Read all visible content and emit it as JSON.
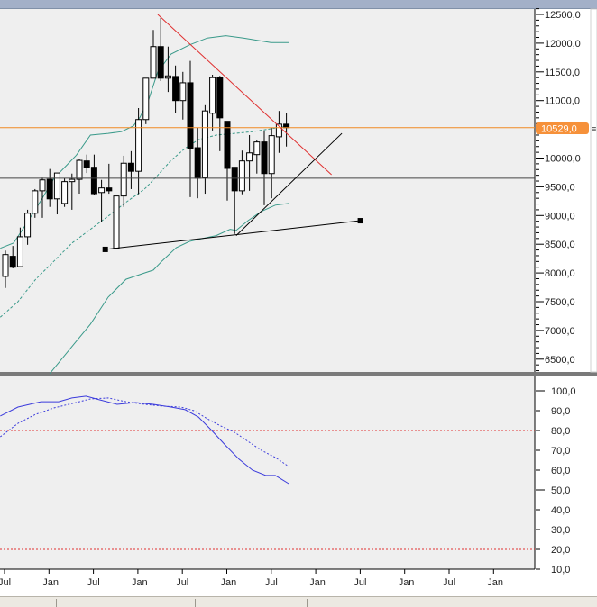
{
  "chart_data": [
    {
      "type": "candlestick",
      "pane": "price",
      "yticks": [
        "12500,0",
        "12000,0",
        "11500,0",
        "11000,0",
        "10000,0",
        "9500,0",
        "9000,0",
        "8500,0",
        "8000,0",
        "7500,0",
        "7000,0",
        "6500,0"
      ],
      "ytick_values": [
        12500,
        12000,
        11500,
        11000,
        10000,
        9500,
        9000,
        8500,
        8000,
        7500,
        7000,
        6500
      ],
      "ylim": [
        6250,
        12650
      ],
      "last_price_label": "10529,0",
      "last_price": 10529,
      "colors": {
        "up": "#ffffff",
        "down": "#000000",
        "bands": "#3a9a8a",
        "last_price_line": "#f08a24",
        "resistance": "#e03030",
        "support": "#000000"
      },
      "candles_ohlc": [
        [
          7940,
          8390,
          7740,
          8320
        ],
        [
          8290,
          8470,
          8080,
          8100
        ],
        [
          8110,
          8790,
          8100,
          8630
        ],
        [
          8630,
          9100,
          8490,
          9040
        ],
        [
          9040,
          9460,
          8960,
          9430
        ],
        [
          9430,
          9660,
          8960,
          9620
        ],
        [
          9630,
          9810,
          9150,
          9290
        ],
        [
          9290,
          9740,
          9020,
          9740
        ],
        [
          9210,
          9650,
          9150,
          9590
        ],
        [
          9590,
          9730,
          9100,
          9630
        ],
        [
          9630,
          9980,
          9380,
          9960
        ],
        [
          9950,
          10060,
          9740,
          9840
        ],
        [
          9840,
          10060,
          9350,
          9380
        ],
        [
          9400,
          9620,
          8880,
          9480
        ],
        [
          9480,
          9900,
          9380,
          9430
        ],
        [
          8430,
          9340,
          8410,
          9340
        ],
        [
          9340,
          10040,
          9150,
          9910
        ],
        [
          9910,
          10120,
          9460,
          9770
        ],
        [
          9770,
          10870,
          9370,
          10670
        ],
        [
          10670,
          11390,
          10590,
          11390
        ],
        [
          11390,
          12230,
          11390,
          11940
        ],
        [
          11940,
          12440,
          11340,
          11390
        ],
        [
          11390,
          11940,
          11150,
          11430
        ],
        [
          11420,
          11610,
          10790,
          11000
        ],
        [
          11000,
          11500,
          10670,
          11310
        ],
        [
          11310,
          11690,
          9320,
          10170
        ],
        [
          10180,
          10530,
          9300,
          9650
        ],
        [
          9660,
          10920,
          9380,
          10820
        ],
        [
          10780,
          11450,
          10480,
          11400
        ],
        [
          11400,
          11430,
          10120,
          10700
        ],
        [
          10640,
          10640,
          9260,
          9820
        ],
        [
          9840,
          9840,
          8680,
          9430
        ],
        [
          9430,
          10130,
          9370,
          9950
        ],
        [
          9950,
          10400,
          9430,
          10090
        ],
        [
          10060,
          10320,
          9730,
          10280
        ],
        [
          10280,
          10480,
          9180,
          9730
        ],
        [
          9730,
          10530,
          9300,
          10390
        ],
        [
          10370,
          10820,
          10090,
          10590
        ],
        [
          10590,
          10790,
          10200,
          10529
        ]
      ],
      "bands": {
        "upper": [
          [
            -0.7,
            8430
          ],
          [
            1.1,
            8520
          ],
          [
            2.9,
            8870
          ],
          [
            4.8,
            9260
          ],
          [
            6.6,
            9650
          ],
          [
            8.4,
            9890
          ],
          [
            9.6,
            10050
          ],
          [
            11.5,
            10400
          ],
          [
            13.9,
            10430
          ],
          [
            15.7,
            10460
          ],
          [
            17.3,
            10560
          ],
          [
            18.2,
            10710
          ],
          [
            19.4,
            11030
          ],
          [
            20.6,
            11500
          ],
          [
            22.4,
            11810
          ],
          [
            24.9,
            11970
          ],
          [
            27.3,
            12090
          ],
          [
            29.8,
            12130
          ],
          [
            32.2,
            12090
          ],
          [
            35.9,
            12010
          ],
          [
            38.3,
            12010
          ]
        ],
        "middle": [
          [
            -0.7,
            7230
          ],
          [
            1.7,
            7500
          ],
          [
            4.1,
            7890
          ],
          [
            6.6,
            8210
          ],
          [
            9.0,
            8520
          ],
          [
            11.5,
            8760
          ],
          [
            13.9,
            8990
          ],
          [
            16.3,
            9230
          ],
          [
            18.8,
            9460
          ],
          [
            20.6,
            9700
          ],
          [
            22.4,
            9960
          ],
          [
            24.3,
            10170
          ],
          [
            26.1,
            10320
          ],
          [
            28.5,
            10400
          ],
          [
            31.0,
            10430
          ],
          [
            33.4,
            10460
          ],
          [
            35.9,
            10510
          ],
          [
            38.3,
            10560
          ]
        ],
        "lower": [
          [
            6.0,
            6250
          ],
          [
            9.0,
            6720
          ],
          [
            11.5,
            7110
          ],
          [
            13.9,
            7580
          ],
          [
            16.3,
            7890
          ],
          [
            18.8,
            8000
          ],
          [
            20.0,
            8050
          ],
          [
            21.2,
            8210
          ],
          [
            23.1,
            8440
          ],
          [
            24.9,
            8550
          ],
          [
            26.7,
            8600
          ],
          [
            28.5,
            8650
          ],
          [
            30.4,
            8760
          ],
          [
            31.2,
            8740
          ],
          [
            32.8,
            8910
          ],
          [
            34.6,
            9070
          ],
          [
            36.5,
            9180
          ],
          [
            38.3,
            9210
          ]
        ]
      },
      "trendlines": [
        {
          "name": "resistance",
          "from": [
            20.6,
            12500
          ],
          "to": [
            44.1,
            9710
          ]
        },
        {
          "name": "support-long",
          "from": [
            13.5,
            8410
          ],
          "to": [
            48.0,
            8910
          ]
        },
        {
          "name": "support-short",
          "from": [
            31.2,
            8650
          ],
          "to": [
            45.5,
            10430
          ]
        }
      ],
      "hlines": [
        9650,
        10529
      ]
    },
    {
      "type": "line",
      "pane": "oscillator",
      "yticks": [
        "100,0",
        "90,0",
        "80,0",
        "70,0",
        "60,0",
        "50,0",
        "40,0",
        "30,0",
        "20,0",
        "10,0"
      ],
      "ytick_values": [
        100,
        90,
        80,
        70,
        60,
        50,
        40,
        30,
        20,
        10
      ],
      "ylim": [
        9,
        100
      ],
      "reference_lines": [
        80,
        20
      ],
      "colors": {
        "series": "#3b3bdc",
        "reference": "#e03030"
      },
      "series": [
        {
          "style": "solid",
          "points": [
            [
              -0.7,
              87.3
            ],
            [
              1.7,
              91.8
            ],
            [
              4.8,
              94.5
            ],
            [
              7.2,
              94.5
            ],
            [
              9.0,
              96.4
            ],
            [
              10.9,
              97.3
            ],
            [
              12.7,
              95.5
            ],
            [
              15.1,
              93.2
            ],
            [
              17.6,
              94.1
            ],
            [
              20.0,
              93.2
            ],
            [
              22.4,
              91.8
            ],
            [
              24.3,
              90.5
            ],
            [
              26.1,
              86.8
            ],
            [
              27.9,
              80.0
            ],
            [
              29.8,
              72.3
            ],
            [
              31.6,
              65.5
            ],
            [
              33.4,
              60.0
            ],
            [
              35.2,
              57.3
            ],
            [
              36.5,
              57.3
            ],
            [
              38.3,
              53.2
            ]
          ]
        },
        {
          "style": "dashed",
          "points": [
            [
              -0.7,
              76.8
            ],
            [
              1.7,
              83.6
            ],
            [
              4.1,
              88.2
            ],
            [
              6.6,
              91.4
            ],
            [
              9.0,
              93.6
            ],
            [
              11.5,
              95.9
            ],
            [
              13.9,
              96.4
            ],
            [
              16.3,
              94.5
            ],
            [
              18.8,
              93.2
            ],
            [
              21.2,
              92.3
            ],
            [
              23.7,
              91.8
            ],
            [
              25.5,
              90.0
            ],
            [
              27.3,
              85.9
            ],
            [
              29.1,
              82.3
            ],
            [
              31.0,
              79.1
            ],
            [
              32.8,
              74.5
            ],
            [
              34.6,
              70.0
            ],
            [
              36.5,
              66.4
            ],
            [
              38.3,
              61.8
            ]
          ]
        }
      ]
    }
  ],
  "xaxis": {
    "ticks": [
      "Jul",
      "Jan",
      "Jul",
      "Jan",
      "Jul",
      "Jan",
      "Jul",
      "Jan",
      "Jul",
      "Jan",
      "Jul",
      "Jan"
    ]
  }
}
